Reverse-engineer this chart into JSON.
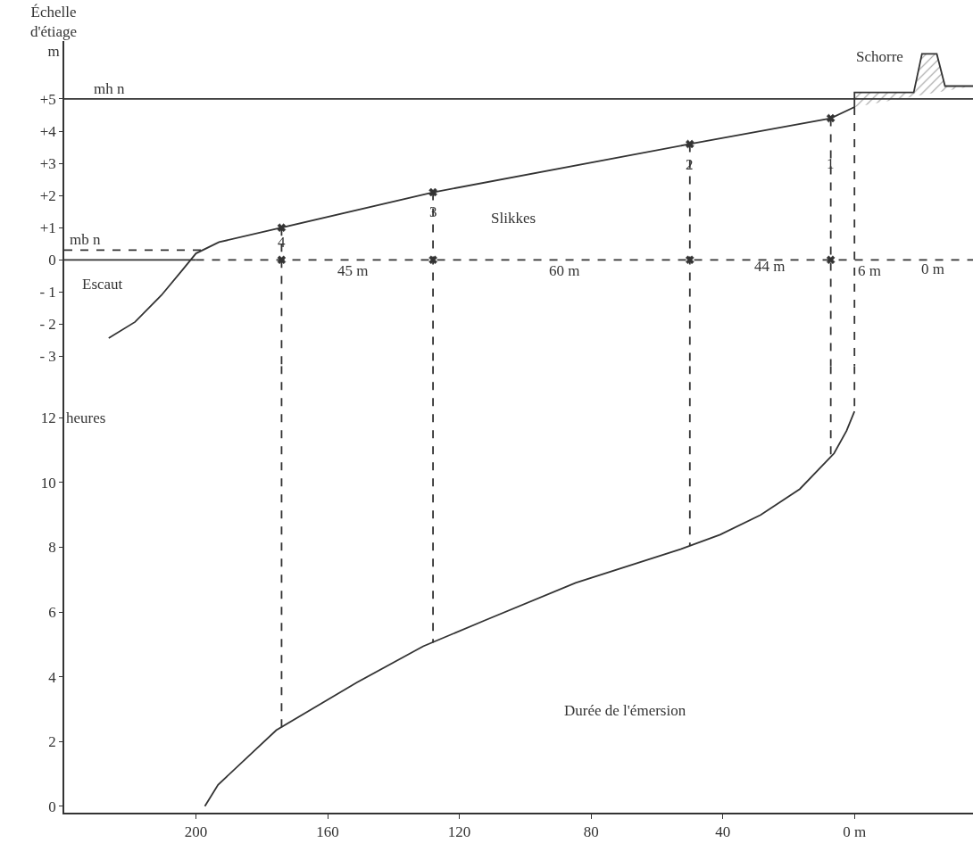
{
  "chart_data": [
    {
      "type": "line",
      "xlim": [
        240,
        -36
      ],
      "ylim": [
        -3.3,
        6.8
      ],
      "yticks": [
        {
          "value": 5,
          "label": "+5"
        },
        {
          "value": 4,
          "label": "+4"
        },
        {
          "value": 3,
          "label": "+3"
        },
        {
          "value": 2,
          "label": "+2"
        },
        {
          "value": 1,
          "label": "+1"
        },
        0,
        {
          "value": -1,
          "label": "- 1"
        },
        {
          "value": -2,
          "label": "- 2"
        },
        {
          "value": -3,
          "label": "- 3"
        }
      ],
      "tick_labels": "y",
      "ylabel": "Échelle\nd'étiage\nm",
      "ref_lines": [
        {
          "axis": "y",
          "value": 5,
          "label": "mh n",
          "color": "#333333",
          "line_style": "solid"
        }
      ],
      "series": [
        {
          "color": "#333333",
          "line_style": "solid",
          "x": [
            226.5,
            218.5,
            210.5,
            204,
            200,
            193,
            174,
            128,
            50,
            7.2,
            0
          ],
          "values": [
            -2.43,
            -1.93,
            -1.1,
            -0.3,
            0.2,
            0.55,
            1.0,
            2.1,
            3.6,
            4.4,
            4.75
          ]
        },
        {
          "type": "area",
          "color": "#333333",
          "line_style": "solid",
          "x": [
            0,
            0,
            -18,
            -20.5,
            -25,
            -27.5,
            -36
          ],
          "values": [
            4.75,
            5.2,
            5.2,
            6.4,
            6.4,
            5.4,
            5.4
          ]
        },
        {
          "color": "#333333",
          "line_style": "dashed",
          "x": [
            240,
            197
          ],
          "values": [
            0.3,
            0.3
          ]
        },
        {
          "color": "#333333",
          "line_style": "solid",
          "x": [
            240,
            200
          ],
          "values": [
            0,
            0
          ]
        },
        {
          "color": "#333333",
          "line_style": "dashed",
          "x": [
            200,
            -36
          ],
          "values": [
            0,
            0
          ]
        },
        {
          "color": "#333333",
          "line_style": "dashed",
          "x": [
            174,
            174
          ],
          "values": [
            1.0,
            -3.3
          ]
        },
        {
          "color": "#333333",
          "line_style": "dashed",
          "x": [
            128,
            128
          ],
          "values": [
            2.1,
            -3.3
          ]
        },
        {
          "color": "#333333",
          "line_style": "dashed",
          "x": [
            50,
            50
          ],
          "values": [
            3.6,
            -3.3
          ]
        },
        {
          "color": "#333333",
          "line_style": "dashed",
          "x": [
            7.2,
            7.2
          ],
          "values": [
            4.4,
            -3.3
          ]
        },
        {
          "color": "#333333",
          "line_style": "dashed",
          "x": [
            0,
            0
          ],
          "values": [
            4.75,
            -3.3
          ]
        },
        {
          "type": "scatter",
          "color": "#333333",
          "marker": "cross",
          "x": [
            174,
            128,
            50,
            7.2
          ],
          "values": [
            1.0,
            2.1,
            3.6,
            4.4
          ]
        },
        {
          "type": "scatter",
          "color": "#333333",
          "marker": "cross",
          "x": [
            174,
            128,
            50,
            7.2
          ],
          "values": [
            0,
            0,
            0,
            0
          ]
        }
      ],
      "annotations": [
        "mb n",
        "Escaut",
        "Slikkes",
        "Schorre",
        {
          "text": "1",
          "x": 7.2,
          "y": 3.0
        },
        {
          "text": "2",
          "x": 50,
          "y": 2.95
        },
        {
          "text": "3",
          "x": 128,
          "y": 1.5
        },
        {
          "text": "4",
          "x": 174,
          "y": 0.55
        },
        "45 m",
        "60 m",
        "44 m",
        "6 m",
        "0 m"
      ]
    },
    {
      "type": "line",
      "xlim": [
        240,
        -36
      ],
      "ylim": [
        -0.2,
        13.6
      ],
      "xticks": [
        200,
        160,
        120,
        80,
        40,
        {
          "value": 0,
          "label": "0 m"
        }
      ],
      "yticks": [
        0,
        2,
        4,
        6,
        8,
        10,
        12
      ],
      "ylabel": "heures",
      "series": [
        {
          "color": "#333333",
          "line_style": "solid",
          "x": [
            197.3,
            193.3,
            182,
            175.6,
            151,
            131,
            112.3,
            84.7,
            52.8,
            40.8,
            28.5,
            16.6,
            6.2,
            2.4,
            0
          ],
          "values": [
            0,
            0.66,
            1.74,
            2.35,
            3.83,
            4.94,
            5.74,
            6.9,
            7.94,
            8.39,
            9.0,
            9.8,
            10.9,
            11.6,
            12.2
          ]
        },
        {
          "color": "#333333",
          "line_style": "dashed",
          "x": [
            174,
            174
          ],
          "values": [
            13.6,
            2.4
          ]
        },
        {
          "color": "#333333",
          "line_style": "dashed",
          "x": [
            128,
            128
          ],
          "values": [
            13.6,
            5.05
          ]
        },
        {
          "color": "#333333",
          "line_style": "dashed",
          "x": [
            50,
            50
          ],
          "values": [
            13.6,
            8.05
          ]
        },
        {
          "color": "#333333",
          "line_style": "dashed",
          "x": [
            7.2,
            7.2
          ],
          "values": [
            13.6,
            10.7
          ]
        },
        {
          "color": "#333333",
          "line_style": "dashed",
          "x": [
            0,
            0
          ],
          "values": [
            13.6,
            12.2
          ]
        }
      ],
      "annotations": [
        "Durée de l'émersion"
      ]
    }
  ]
}
